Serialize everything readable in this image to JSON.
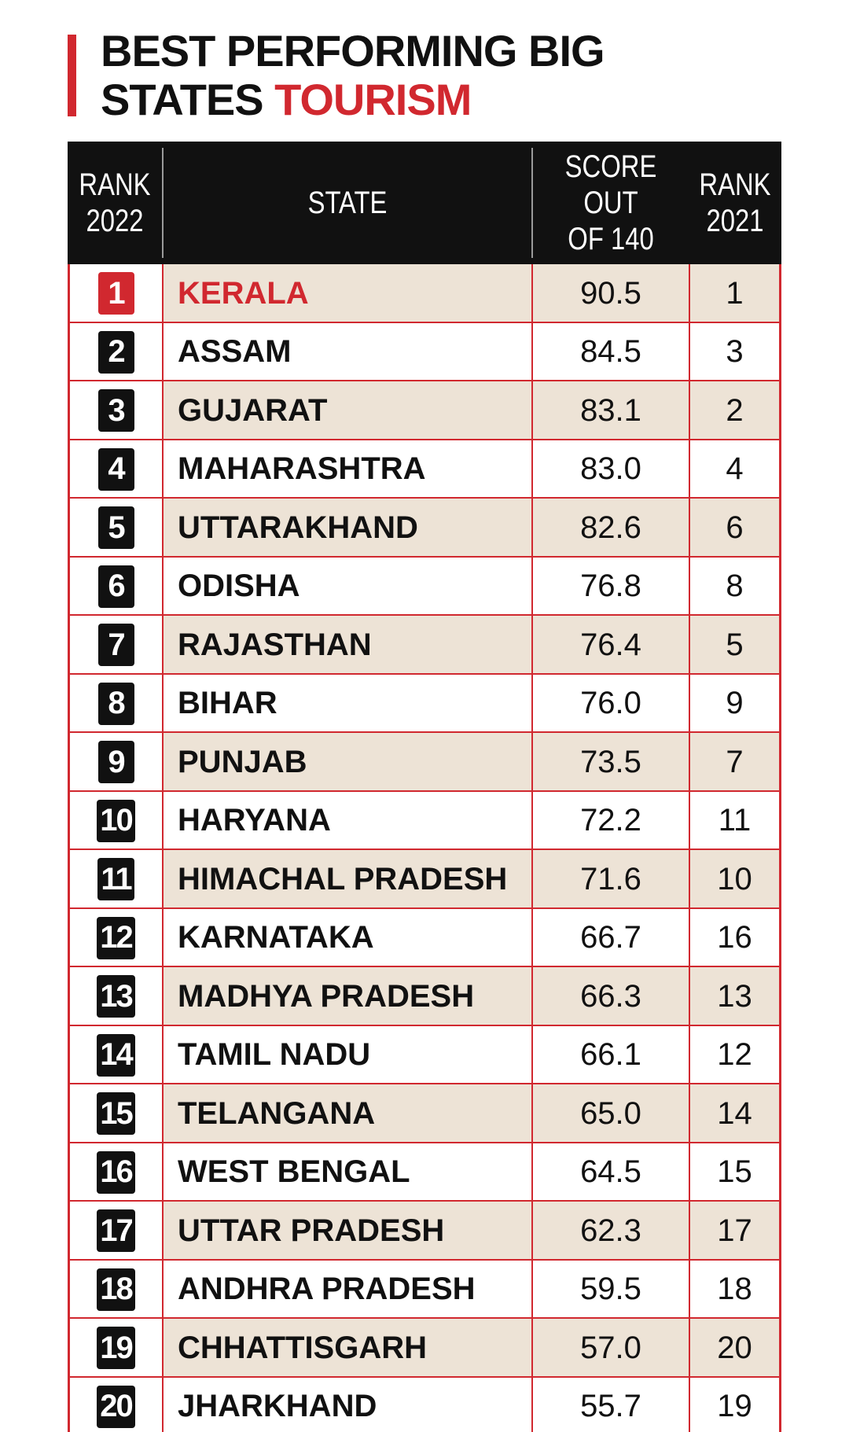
{
  "title": {
    "line1": "BEST PERFORMING BIG",
    "line2_plain": "STATES",
    "line2_accent": "TOURISM"
  },
  "colors": {
    "accent": "#d1282f",
    "header_bg": "#111111",
    "row_odd": "#ede3d6",
    "row_even": "#ffffff"
  },
  "table": {
    "headers": {
      "rank_2022": "RANK\n2022",
      "state": "STATE",
      "score": "SCORE OUT\nOF 140",
      "rank_2021": "RANK\n2021"
    }
  },
  "chart_data": {
    "type": "table",
    "title": "BEST PERFORMING BIG STATES TOURISM",
    "columns": [
      "RANK 2022",
      "STATE",
      "SCORE OUT OF 140",
      "RANK 2021"
    ],
    "rows": [
      {
        "rank": "1",
        "state": "KERALA",
        "score": "90.5",
        "prev": "1"
      },
      {
        "rank": "2",
        "state": "ASSAM",
        "score": "84.5",
        "prev": "3"
      },
      {
        "rank": "3",
        "state": "GUJARAT",
        "score": "83.1",
        "prev": "2"
      },
      {
        "rank": "4",
        "state": "MAHARASHTRA",
        "score": "83.0",
        "prev": "4"
      },
      {
        "rank": "5",
        "state": "UTTARAKHAND",
        "score": "82.6",
        "prev": "6"
      },
      {
        "rank": "6",
        "state": "ODISHA",
        "score": "76.8",
        "prev": "8"
      },
      {
        "rank": "7",
        "state": "RAJASTHAN",
        "score": "76.4",
        "prev": "5"
      },
      {
        "rank": "8",
        "state": "BIHAR",
        "score": "76.0",
        "prev": "9"
      },
      {
        "rank": "9",
        "state": "PUNJAB",
        "score": "73.5",
        "prev": "7"
      },
      {
        "rank": "10",
        "state": "HARYANA",
        "score": "72.2",
        "prev": "11"
      },
      {
        "rank": "11",
        "state": "HIMACHAL PRADESH",
        "score": "71.6",
        "prev": "10"
      },
      {
        "rank": "12",
        "state": "KARNATAKA",
        "score": "66.7",
        "prev": "16"
      },
      {
        "rank": "13",
        "state": "MADHYA PRADESH",
        "score": "66.3",
        "prev": "13"
      },
      {
        "rank": "14",
        "state": "TAMIL NADU",
        "score": "66.1",
        "prev": "12"
      },
      {
        "rank": "15",
        "state": "TELANGANA",
        "score": "65.0",
        "prev": "14"
      },
      {
        "rank": "16",
        "state": "WEST BENGAL",
        "score": "64.5",
        "prev": "15"
      },
      {
        "rank": "17",
        "state": "UTTAR PRADESH",
        "score": "62.3",
        "prev": "17"
      },
      {
        "rank": "18",
        "state": "ANDHRA PRADESH",
        "score": "59.5",
        "prev": "18"
      },
      {
        "rank": "19",
        "state": "CHHATTISGARH",
        "score": "57.0",
        "prev": "20"
      },
      {
        "rank": "20",
        "state": "JHARKHAND",
        "score": "55.7",
        "prev": "19"
      }
    ]
  }
}
